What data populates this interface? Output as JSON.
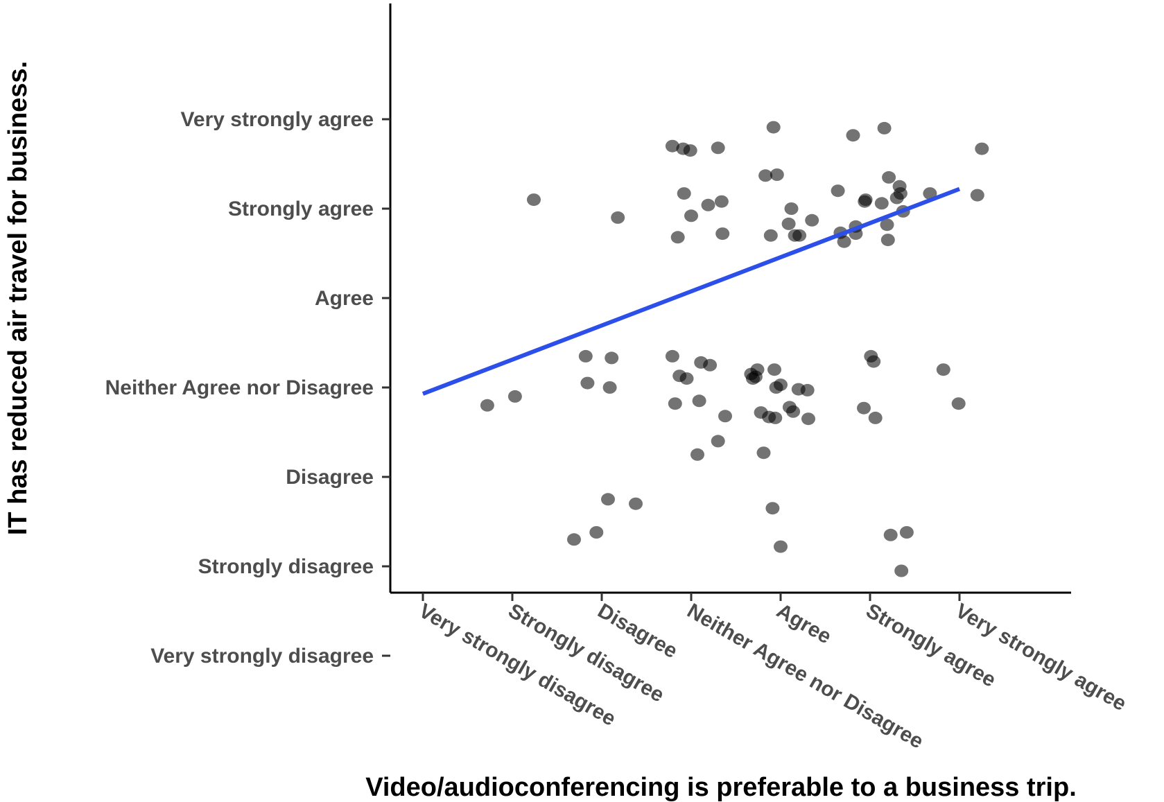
{
  "chart_data": {
    "type": "scatter",
    "title": "",
    "xlabel": "Video/audioconferencing is preferable to a business trip.",
    "ylabel": "IT has reduced air travel for business.",
    "x_categories": [
      "Very strongly disagree",
      "Strongly disagree",
      "Disagree",
      "Neither Agree nor Disagree",
      "Agree",
      "Strongly agree",
      "Very strongly agree"
    ],
    "y_categories": [
      "Very strongly disagree",
      "Strongly disagree",
      "Disagree",
      "Neither Agree nor Disagree",
      "Agree",
      "Strongly agree",
      "Very strongly agree"
    ],
    "xlim": [
      0.65,
      8.4
    ],
    "ylim": [
      0.7,
      7.3
    ],
    "grid": false,
    "points": [
      [
        1.72,
        3.8
      ],
      [
        2.03,
        3.9
      ],
      [
        2.24,
        6.1
      ],
      [
        2.69,
        2.3
      ],
      [
        2.82,
        4.35
      ],
      [
        2.84,
        4.05
      ],
      [
        2.94,
        2.38
      ],
      [
        3.07,
        2.75
      ],
      [
        3.09,
        4.0
      ],
      [
        3.11,
        4.33
      ],
      [
        3.18,
        5.9
      ],
      [
        3.38,
        2.7
      ],
      [
        3.79,
        6.7
      ],
      [
        3.79,
        4.35
      ],
      [
        3.82,
        3.82
      ],
      [
        3.85,
        5.68
      ],
      [
        3.87,
        4.13
      ],
      [
        3.91,
        6.67
      ],
      [
        3.92,
        6.17
      ],
      [
        3.95,
        4.1
      ],
      [
        3.99,
        6.65
      ],
      [
        4.0,
        5.92
      ],
      [
        4.07,
        3.25
      ],
      [
        4.09,
        3.85
      ],
      [
        4.11,
        4.28
      ],
      [
        4.19,
        6.04
      ],
      [
        4.21,
        4.25
      ],
      [
        4.3,
        3.4
      ],
      [
        4.3,
        6.68
      ],
      [
        4.34,
        6.08
      ],
      [
        4.35,
        5.72
      ],
      [
        4.38,
        3.68
      ],
      [
        4.67,
        4.15
      ],
      [
        4.69,
        4.1
      ],
      [
        4.72,
        4.12
      ],
      [
        4.74,
        4.2
      ],
      [
        4.78,
        3.72
      ],
      [
        4.81,
        3.27
      ],
      [
        4.83,
        6.37
      ],
      [
        4.87,
        3.67
      ],
      [
        4.89,
        5.7
      ],
      [
        4.91,
        2.65
      ],
      [
        4.92,
        6.91
      ],
      [
        4.93,
        4.2
      ],
      [
        4.94,
        3.66
      ],
      [
        4.95,
        4.0
      ],
      [
        4.96,
        6.38
      ],
      [
        5.0,
        4.03
      ],
      [
        5.0,
        2.22
      ],
      [
        5.09,
        5.83
      ],
      [
        5.1,
        3.78
      ],
      [
        5.12,
        6.0
      ],
      [
        5.14,
        3.73
      ],
      [
        5.16,
        5.7
      ],
      [
        5.21,
        5.7
      ],
      [
        5.2,
        3.98
      ],
      [
        5.3,
        3.97
      ],
      [
        5.31,
        3.65
      ],
      [
        5.35,
        5.87
      ],
      [
        5.64,
        6.2
      ],
      [
        5.67,
        5.73
      ],
      [
        5.71,
        5.63
      ],
      [
        5.81,
        6.82
      ],
      [
        5.84,
        5.8
      ],
      [
        5.84,
        5.72
      ],
      [
        5.93,
        3.77
      ],
      [
        5.94,
        6.08
      ],
      [
        5.95,
        6.1
      ],
      [
        6.01,
        4.35
      ],
      [
        6.04,
        4.29
      ],
      [
        6.06,
        3.66
      ],
      [
        6.13,
        6.06
      ],
      [
        6.16,
        6.9
      ],
      [
        6.19,
        5.82
      ],
      [
        6.2,
        5.65
      ],
      [
        6.21,
        6.35
      ],
      [
        6.23,
        2.35
      ],
      [
        6.3,
        6.12
      ],
      [
        6.33,
        6.25
      ],
      [
        6.34,
        6.17
      ],
      [
        6.35,
        1.95
      ],
      [
        6.37,
        5.97
      ],
      [
        6.41,
        2.38
      ],
      [
        6.67,
        6.17
      ],
      [
        6.82,
        4.2
      ],
      [
        6.99,
        3.82
      ],
      [
        7.2,
        6.15
      ],
      [
        7.25,
        6.67
      ]
    ],
    "fit_line": {
      "x": [
        1,
        7
      ],
      "y": [
        3.93,
        6.22
      ]
    }
  }
}
